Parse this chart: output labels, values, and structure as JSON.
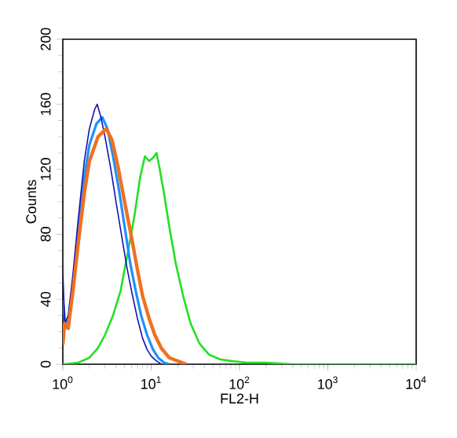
{
  "chart_data": {
    "type": "line",
    "xlabel": "FL2-H",
    "ylabel": "Counts",
    "log": "x",
    "grid": false,
    "marker": "none",
    "line_style": "solid",
    "xlim": [
      1,
      10000
    ],
    "ylim": [
      0,
      200
    ],
    "xticks": [
      {
        "value": 1,
        "label": "10$^{0}$"
      },
      {
        "value": 10,
        "label": "10$^{1}$"
      },
      {
        "value": 100,
        "label": "10$^{2}$"
      },
      {
        "value": 1000,
        "label": "10$^{3}$"
      },
      {
        "value": 10000,
        "label": "10$^{4}$"
      }
    ],
    "yticks": [
      0,
      40,
      80,
      120,
      160,
      200
    ],
    "series": [
      {
        "color": "#22e022",
        "x": [
          1.0,
          1.5,
          2.0,
          2.5,
          3.0,
          3.7,
          4.5,
          5.5,
          6.5,
          7.5,
          8.5,
          9.5,
          10.5,
          11.5,
          12.5,
          14,
          16,
          19,
          23,
          28,
          35,
          45,
          60,
          80,
          120,
          200,
          400,
          10000
        ],
        "values": [
          0,
          1,
          4,
          10,
          18,
          30,
          45,
          70,
          92,
          115,
          128,
          125,
          127,
          130,
          120,
          105,
          85,
          62,
          42,
          25,
          13,
          6,
          3,
          2,
          1,
          1,
          0,
          0
        ]
      },
      {
        "color": "#1e90ff",
        "x": [
          1.0,
          1.05,
          1.15,
          1.3,
          1.5,
          1.75,
          2.0,
          2.4,
          2.8,
          3.2,
          3.7,
          4.3,
          5.0,
          5.8,
          6.7,
          7.7,
          9.0,
          10.5,
          12,
          14,
          16
        ],
        "values": [
          40,
          28,
          25,
          45,
          80,
          115,
          135,
          148,
          152,
          145,
          128,
          108,
          85,
          62,
          45,
          30,
          18,
          9,
          4,
          1,
          0
        ]
      },
      {
        "color": "#1010b0",
        "x": [
          1.0,
          1.05,
          1.15,
          1.3,
          1.5,
          1.75,
          2.0,
          2.3,
          2.45,
          2.7,
          3.0,
          3.5,
          4.0,
          4.6,
          5.3,
          6.0,
          7.0,
          8.0,
          9.0,
          10,
          11.5,
          13
        ],
        "values": [
          58,
          25,
          30,
          55,
          90,
          125,
          145,
          157,
          160,
          152,
          140,
          120,
          100,
          80,
          60,
          45,
          28,
          16,
          9,
          5,
          2,
          0
        ]
      },
      {
        "color": "#f07020",
        "x": [
          1.0,
          1.05,
          1.15,
          1.3,
          1.5,
          1.75,
          2.0,
          2.5,
          3.1,
          3.6,
          4.2,
          5,
          6,
          7,
          8,
          9.5,
          11,
          13,
          16,
          20,
          25
        ],
        "values": [
          12,
          25,
          22,
          45,
          75,
          105,
          125,
          140,
          145,
          138,
          122,
          100,
          78,
          58,
          42,
          28,
          18,
          10,
          4,
          2,
          0
        ]
      }
    ]
  }
}
